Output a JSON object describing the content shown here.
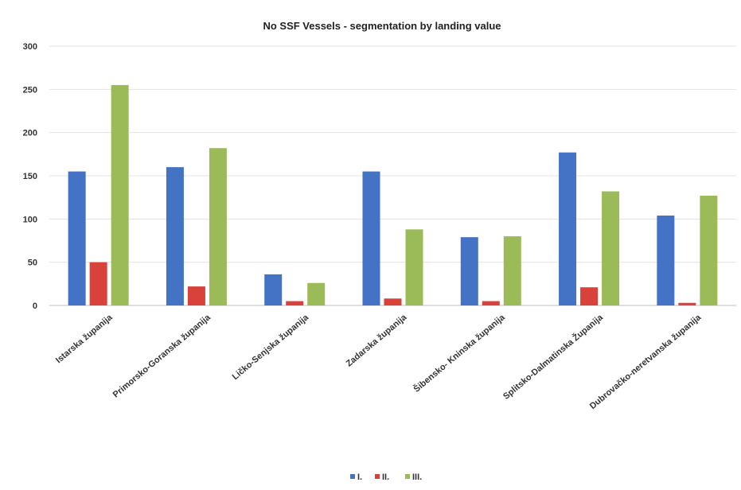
{
  "chart_data": {
    "type": "bar",
    "title": "No SSF Vessels - segmentation by landing value",
    "xlabel": "",
    "ylabel": "",
    "ylim": [
      0,
      300
    ],
    "yticks": [
      0,
      50,
      100,
      150,
      200,
      250,
      300
    ],
    "grid": true,
    "legend_position": "bottom",
    "categories": [
      "Istarska županija",
      "Primorsko-Goranska županija",
      "Ličko-Senjska županija",
      "Zadarska županija",
      "Šibensko- Kninska županija",
      "Splitsko-Dalmatinska Županija",
      "Dubrovačko-neretvanska županija"
    ],
    "series": [
      {
        "name": "I.",
        "color": "#4472c4",
        "values": [
          155,
          160,
          36,
          155,
          79,
          177,
          104
        ]
      },
      {
        "name": "II.",
        "color": "#d9413b",
        "values": [
          50,
          22,
          5,
          8,
          5,
          21,
          3
        ]
      },
      {
        "name": "III.",
        "color": "#9bbb59",
        "values": [
          255,
          182,
          26,
          88,
          80,
          132,
          127
        ]
      }
    ]
  }
}
